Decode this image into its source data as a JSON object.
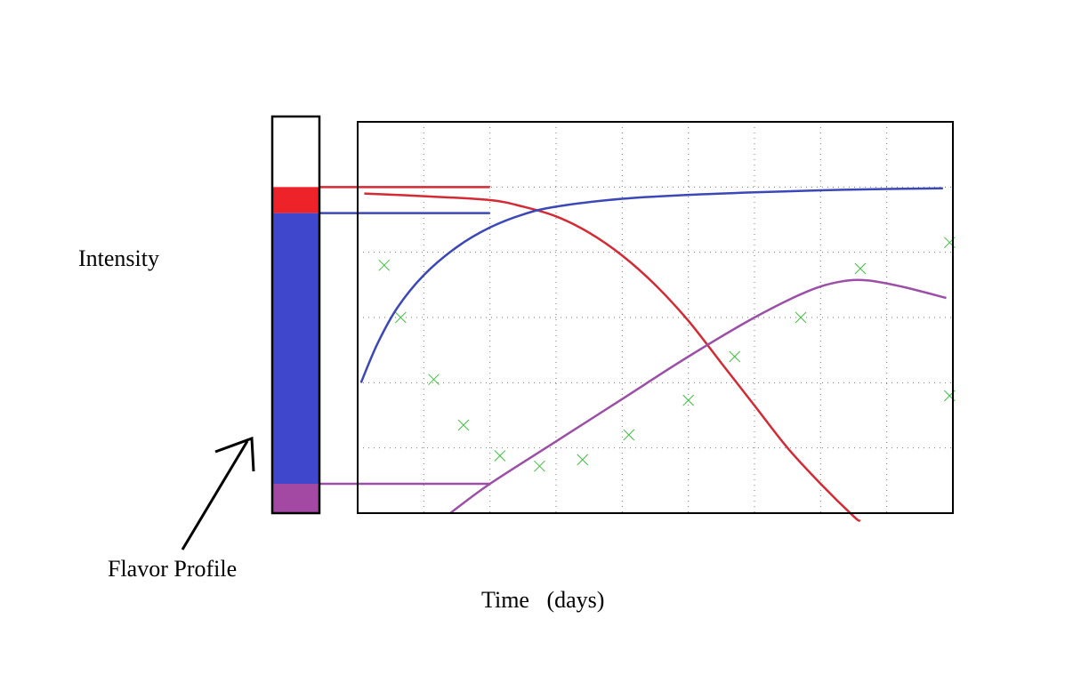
{
  "labels": {
    "y_axis": "Intensity",
    "x_axis": "Time   (days)",
    "flavor_profile": "Flavor Profile"
  },
  "colors": {
    "red_curve": "#d42a34",
    "blue_curve": "#3c48b8",
    "purple_curve": "#9b4fa6",
    "marker": "#40c040",
    "bar_red": "#ee2229",
    "bar_blue": "#3f48cc",
    "bar_purple": "#a349a4"
  },
  "chart_data": {
    "type": "line",
    "title": "",
    "xlabel": "Time   (days)",
    "ylabel": "Intensity",
    "xlim": [
      0,
      9
    ],
    "ylim": [
      0,
      6
    ],
    "grid": true,
    "legend": "none",
    "series": [
      {
        "color": "#d42a34",
        "x": [
          0.1,
          1,
          2,
          2.5,
          3,
          3.5,
          4,
          4.5,
          5,
          5.5,
          6,
          6.5,
          7,
          7.5,
          7.6
        ],
        "y": [
          4.9,
          4.86,
          4.8,
          4.7,
          4.55,
          4.3,
          3.95,
          3.5,
          2.95,
          2.3,
          1.65,
          1.0,
          0.45,
          -0.05,
          -0.12
        ]
      },
      {
        "color": "#3c48b8",
        "x": [
          0.05,
          0.3,
          0.6,
          1,
          1.5,
          2,
          2.5,
          3,
          4,
          5,
          6,
          7,
          8,
          8.85
        ],
        "y": [
          2.0,
          2.6,
          3.15,
          3.65,
          4.08,
          4.38,
          4.58,
          4.7,
          4.82,
          4.88,
          4.92,
          4.95,
          4.97,
          4.98
        ]
      },
      {
        "color": "#9b4fa6",
        "x": [
          1.4,
          2,
          3,
          4,
          5,
          6,
          6.8,
          7.3,
          7.7,
          8.2,
          8.9
        ],
        "y": [
          0.0,
          0.45,
          1.1,
          1.75,
          2.4,
          3.0,
          3.4,
          3.55,
          3.57,
          3.48,
          3.3
        ]
      }
    ],
    "markers": {
      "x": [
        0.4,
        0.65,
        1.15,
        1.6,
        2.15,
        2.75,
        3.4,
        4.1,
        5.0,
        5.7,
        6.7,
        7.6,
        8.95,
        8.95
      ],
      "y": [
        3.8,
        3.0,
        2.05,
        1.35,
        0.88,
        0.72,
        0.82,
        1.2,
        1.73,
        2.4,
        3.0,
        3.75,
        4.15,
        1.8
      ]
    },
    "flavor_bar": {
      "levels": [
        5,
        4.6,
        0.45
      ],
      "colors": [
        "#ee2229",
        "#3f48cc",
        "#a349a4"
      ]
    }
  }
}
